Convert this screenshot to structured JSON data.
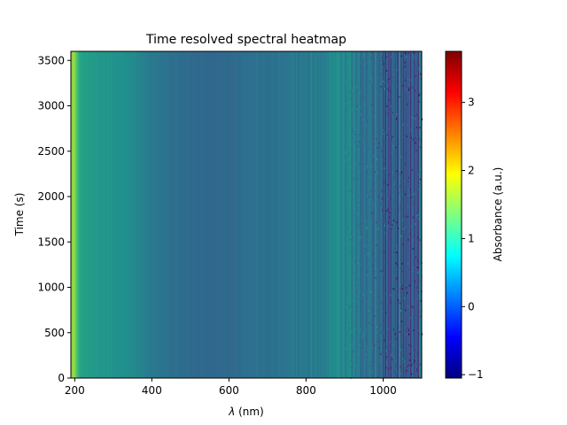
{
  "chart_data": {
    "type": "heatmap",
    "title": "Time resolved spectral heatmap",
    "xlabel_symbol": "λ",
    "xlabel_unit": " (nm)",
    "ylabel": "Time (s)",
    "xlim": [
      190,
      1100
    ],
    "ylim": [
      0,
      3600
    ],
    "x_ticks": [
      200,
      400,
      600,
      800,
      1000
    ],
    "y_ticks": [
      0,
      500,
      1000,
      1500,
      2000,
      2500,
      3000,
      3500
    ],
    "colorbar": {
      "label": "Absorbance (a.u.)",
      "colormap": "jet",
      "vmin": -1.05,
      "vmax": 3.75,
      "ticks": [
        -1,
        0,
        1,
        2,
        3
      ]
    },
    "spectrum_profile": {
      "wavelength_nm": [
        190,
        198,
        205,
        212,
        220,
        240,
        260,
        300,
        340,
        370,
        400,
        450,
        500,
        550,
        600,
        640,
        680,
        720,
        760,
        800,
        840,
        870,
        900,
        940,
        970,
        990,
        1020,
        1060,
        1100
      ],
      "absorbance": [
        1.75,
        1.85,
        1.55,
        1.28,
        1.18,
        1.12,
        1.08,
        1.04,
        0.98,
        0.88,
        0.78,
        0.7,
        0.65,
        0.62,
        0.64,
        0.68,
        0.7,
        0.72,
        0.75,
        0.78,
        0.82,
        0.92,
        0.88,
        0.82,
        0.7,
        0.5,
        0.4,
        0.38,
        0.4
      ]
    },
    "noise_amplitude": {
      "wavelength_nm": [
        190,
        600,
        800,
        900,
        960,
        1000,
        1100
      ],
      "amplitude": [
        0.02,
        0.03,
        0.07,
        0.12,
        0.2,
        0.3,
        0.35
      ]
    }
  }
}
